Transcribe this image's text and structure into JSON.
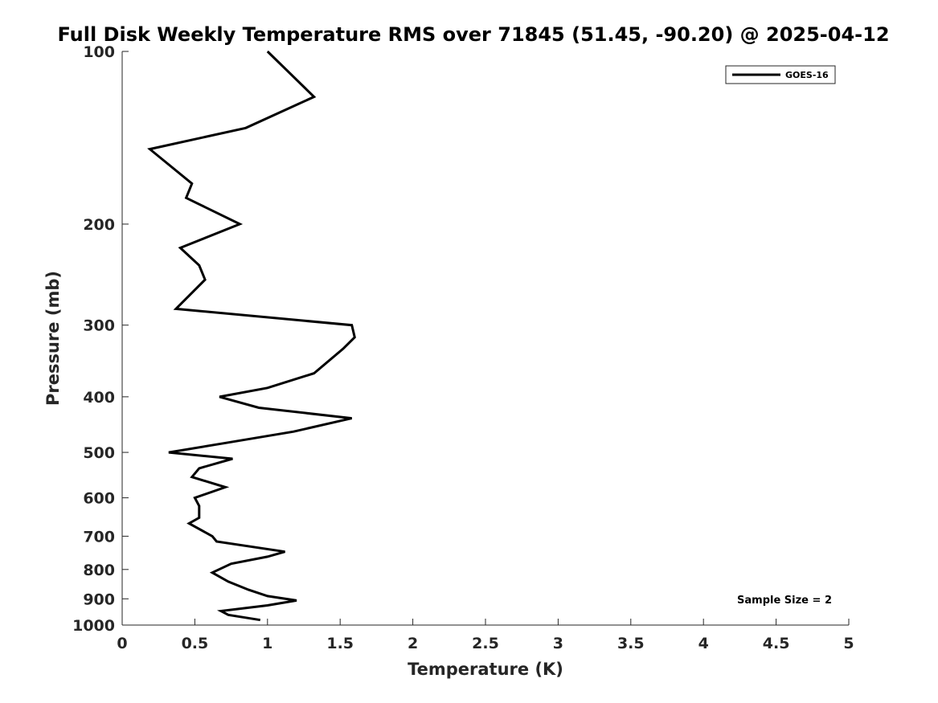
{
  "chart_data": {
    "type": "line",
    "title": "Full Disk Weekly Temperature RMS over 71845 (51.45, -90.20) @ 2025-04-12",
    "xlabel": "Temperature (K)",
    "ylabel": "Pressure (mb)",
    "xlim": [
      0,
      5
    ],
    "ylim": [
      100,
      1000
    ],
    "yscale": "log",
    "y_reversed": true,
    "x_ticks": [
      "0",
      "0.5",
      "1",
      "1.5",
      "2",
      "2.5",
      "3",
      "3.5",
      "4",
      "4.5",
      "5"
    ],
    "y_ticks": [
      {
        "value": 100,
        "label": "100"
      },
      {
        "value": 200,
        "label": "200"
      },
      {
        "value": 300,
        "label": "300"
      },
      {
        "value": 400,
        "label": "400"
      },
      {
        "value": 500,
        "label": "500"
      },
      {
        "value": 600,
        "label": "600"
      },
      {
        "value": 700,
        "label": "700"
      },
      {
        "value": 800,
        "label": "800"
      },
      {
        "value": 900,
        "label": "900"
      },
      {
        "value": 1000,
        "label": "1000"
      }
    ],
    "grid": false,
    "legend": {
      "placement": "top-right"
    },
    "series": [
      {
        "name": "GOES-16",
        "color": "#000000",
        "points": [
          [
            1.0,
            100
          ],
          [
            1.32,
            120
          ],
          [
            0.85,
            136
          ],
          [
            0.19,
            148
          ],
          [
            0.48,
            170
          ],
          [
            0.44,
            180
          ],
          [
            0.81,
            200
          ],
          [
            0.4,
            220
          ],
          [
            0.53,
            236
          ],
          [
            0.57,
            250
          ],
          [
            0.37,
            281
          ],
          [
            1.58,
            300
          ],
          [
            1.6,
            315
          ],
          [
            1.52,
            330
          ],
          [
            1.32,
            364
          ],
          [
            1.0,
            386
          ],
          [
            0.67,
            400
          ],
          [
            0.94,
            418
          ],
          [
            1.58,
            436
          ],
          [
            1.18,
            460
          ],
          [
            0.7,
            482
          ],
          [
            0.32,
            500
          ],
          [
            0.76,
            513
          ],
          [
            0.53,
            533
          ],
          [
            0.48,
            552
          ],
          [
            0.71,
            575
          ],
          [
            0.5,
            600
          ],
          [
            0.53,
            620
          ],
          [
            0.53,
            650
          ],
          [
            0.46,
            665
          ],
          [
            0.62,
            700
          ],
          [
            0.65,
            715
          ],
          [
            1.12,
            745
          ],
          [
            1.0,
            760
          ],
          [
            0.75,
            782
          ],
          [
            0.62,
            810
          ],
          [
            0.73,
            840
          ],
          [
            0.87,
            868
          ],
          [
            1.0,
            890
          ],
          [
            1.2,
            906
          ],
          [
            1.0,
            924
          ],
          [
            0.68,
            945
          ],
          [
            0.73,
            960
          ],
          [
            0.95,
            980
          ]
        ]
      }
    ],
    "annotations": [
      {
        "text": "Sample Size = 2",
        "placement": "bottom-right"
      }
    ]
  }
}
